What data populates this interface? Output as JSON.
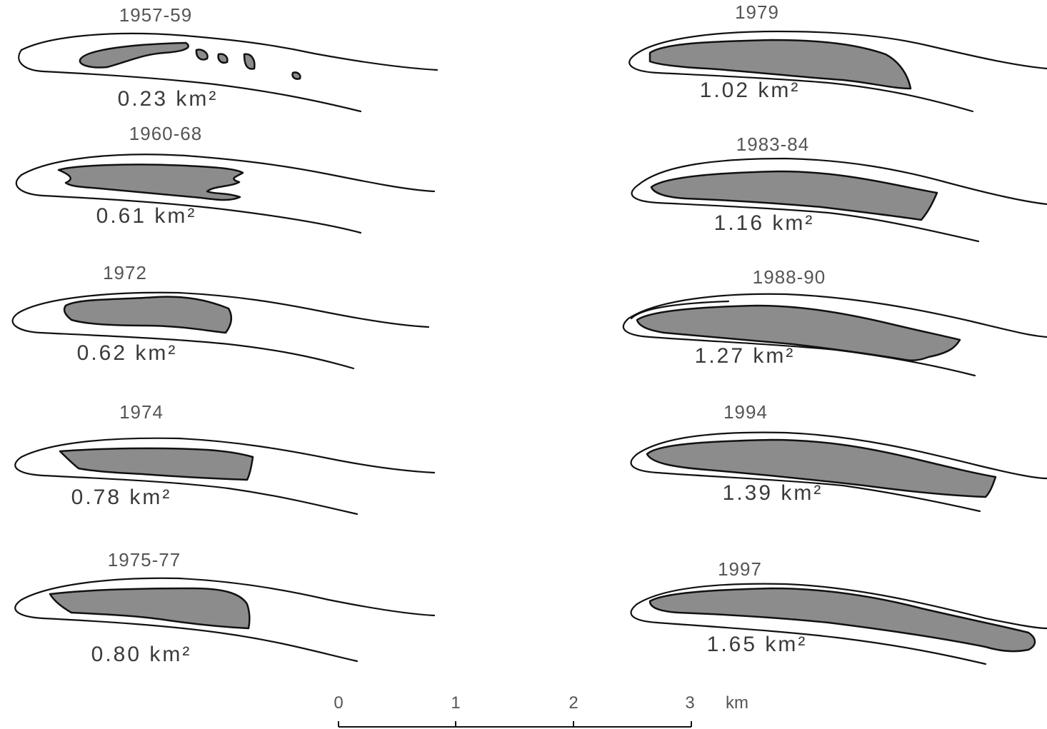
{
  "panels": [
    {
      "year": "1957-59",
      "area": "0.23 km²"
    },
    {
      "year": "1960-68",
      "area": "0.61 km²"
    },
    {
      "year": "1972",
      "area": "0.62 km²"
    },
    {
      "year": "1974",
      "area": "0.78 km²"
    },
    {
      "year": "1975-77",
      "area": "0.80 km²"
    },
    {
      "year": "1979",
      "area": "1.02 km²"
    },
    {
      "year": "1983-84",
      "area": "1.16 km²"
    },
    {
      "year": "1988-90",
      "area": "1.27 km²"
    },
    {
      "year": "1994",
      "area": "1.39 km²"
    },
    {
      "year": "1997",
      "area": "1.65 km²"
    }
  ],
  "scale_bar": {
    "ticks": [
      "0",
      "1",
      "2",
      "3"
    ],
    "unit": "km"
  },
  "colors": {
    "lake_fill": "#8c8c8c",
    "outline": "#111111",
    "text": "#555555"
  }
}
